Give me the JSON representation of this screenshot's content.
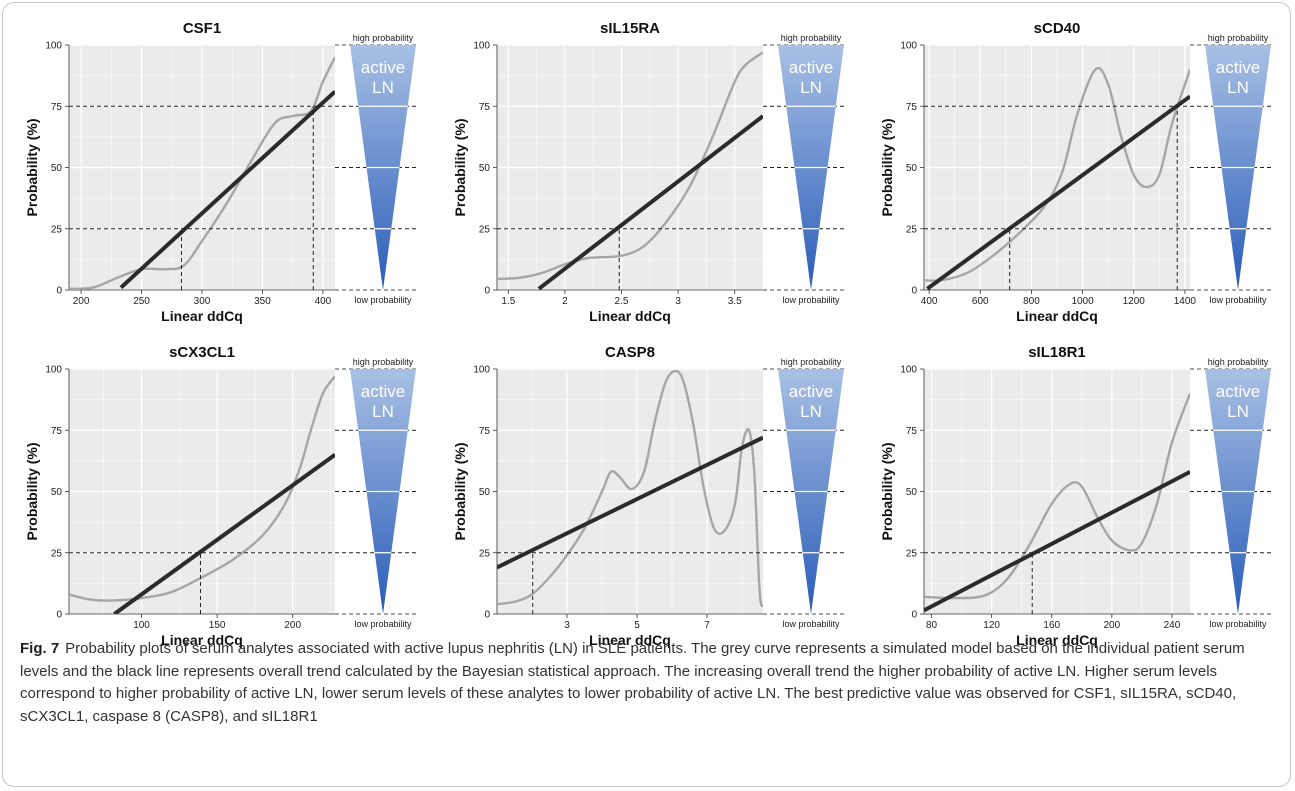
{
  "figure": {
    "fig_label": "Fig. 7",
    "caption": "Probability plots of serum analytes associated with active lupus nephritis (LN) in SLE patients. The grey curve represents a simulated model based on the individual patient serum levels and the black line represents overall trend calculated by the Bayesian statistical approach. The increasing overall trend the higher probability of active LN. Higher serum levels correspond to higher probability of active LN, lower serum levels of these analytes to lower probability of active LN. The best predictive value was observed for CSF1, sIL15RA, sCD40, sCX3CL1, caspase 8 (CASP8), and sIL18R1"
  },
  "colors": {
    "panel_bg": "#ebebeb",
    "gridline": "#ffffff",
    "curve": "#a6a6a6",
    "trend": "#2b2b2b",
    "dashed": "#222222",
    "wedge_top": "#a8c0e4",
    "wedge_bottom": "#2a5cb8"
  },
  "scale_labels": {
    "high": "high probability",
    "low": "low probability",
    "region": [
      "active",
      "LN"
    ]
  },
  "chart_data": [
    {
      "type": "line",
      "title": "CSF1",
      "xlabel": "Linear ddCq",
      "ylabel": "Probability (%)",
      "xlim": [
        190,
        410
      ],
      "ylim": [
        0,
        100
      ],
      "xticks": [
        200,
        250,
        300,
        350,
        400
      ],
      "yticks": [
        0,
        25,
        50,
        75,
        100
      ],
      "series": [
        {
          "role": "simulated model",
          "x": [
            190,
            210,
            230,
            250,
            270,
            285,
            300,
            320,
            340,
            360,
            375,
            390,
            400,
            410
          ],
          "y": [
            0.5,
            1,
            5,
            8.5,
            8.5,
            10,
            20,
            35,
            52,
            68,
            71,
            73,
            85,
            95
          ]
        },
        {
          "role": "overall trend",
          "x": [
            233,
            410
          ],
          "y": [
            1,
            81
          ]
        }
      ],
      "dashed_markers": [
        {
          "x": 283,
          "y": 25
        },
        {
          "x": 392,
          "y": 75
        }
      ],
      "grid": true
    },
    {
      "type": "line",
      "title": "sIL15RA",
      "xlabel": "Linear ddCq",
      "ylabel": "Probability (%)",
      "xlim": [
        1.4,
        3.75
      ],
      "ylim": [
        0,
        100
      ],
      "xticks": [
        1.5,
        2.0,
        2.5,
        3.0,
        3.5
      ],
      "yticks": [
        0,
        25,
        50,
        75,
        100
      ],
      "series": [
        {
          "role": "simulated model",
          "x": [
            1.4,
            1.6,
            1.8,
            2.0,
            2.2,
            2.5,
            2.7,
            2.9,
            3.1,
            3.3,
            3.5,
            3.6,
            3.75
          ],
          "y": [
            4.5,
            5,
            7,
            10.5,
            13,
            14,
            18,
            28,
            42,
            62,
            85,
            92,
            97
          ]
        },
        {
          "role": "overall trend",
          "x": [
            1.77,
            3.75
          ],
          "y": [
            0.5,
            71
          ]
        }
      ],
      "dashed_markers": [
        {
          "x": 2.48,
          "y": 25
        }
      ],
      "grid": true
    },
    {
      "type": "line",
      "title": "sCD40",
      "xlabel": "Linear ddCq",
      "ylabel": "Probability (%)",
      "xlim": [
        380,
        1420
      ],
      "ylim": [
        0,
        100
      ],
      "xticks": [
        400,
        600,
        800,
        1000,
        1200,
        1400
      ],
      "yticks": [
        0,
        25,
        50,
        75,
        100
      ],
      "series": [
        {
          "role": "simulated model",
          "x": [
            380,
            450,
            550,
            650,
            750,
            850,
            920,
            980,
            1050,
            1100,
            1150,
            1200,
            1250,
            1300,
            1350,
            1420
          ],
          "y": [
            4,
            4,
            7,
            14,
            23,
            34,
            48,
            72,
            90,
            84,
            63,
            47,
            42,
            47,
            68,
            90
          ]
        },
        {
          "role": "overall trend",
          "x": [
            393,
            1420
          ],
          "y": [
            0.5,
            79
          ]
        }
      ],
      "dashed_markers": [
        {
          "x": 715,
          "y": 25
        },
        {
          "x": 1370,
          "y": 75
        }
      ],
      "grid": true
    },
    {
      "type": "line",
      "title": "sCX3CL1",
      "xlabel": "Linear ddCq",
      "ylabel": "Probability (%)",
      "xlim": [
        52,
        228
      ],
      "ylim": [
        0,
        100
      ],
      "xticks": [
        100,
        150,
        200
      ],
      "yticks": [
        0,
        25,
        50,
        75,
        100
      ],
      "series": [
        {
          "role": "simulated model",
          "x": [
            52,
            65,
            80,
            100,
            120,
            140,
            160,
            180,
            195,
            205,
            212,
            220,
            228
          ],
          "y": [
            8,
            6,
            5.5,
            6.5,
            9,
            15,
            22,
            32,
            45,
            60,
            75,
            90,
            97
          ]
        },
        {
          "role": "overall trend",
          "x": [
            82,
            228
          ],
          "y": [
            0,
            65
          ]
        }
      ],
      "dashed_markers": [
        {
          "x": 139,
          "y": 25
        }
      ],
      "grid": true
    },
    {
      "type": "line",
      "title": "CASP8",
      "xlabel": "Linear ddCq",
      "ylabel": "Probability (%)",
      "xlim": [
        1,
        8.6
      ],
      "ylim": [
        0,
        100
      ],
      "xticks": [
        3,
        5,
        7
      ],
      "yticks": [
        0,
        25,
        50,
        75,
        100
      ],
      "series": [
        {
          "role": "simulated model",
          "x": [
            1,
            1.5,
            2,
            2.5,
            3,
            3.5,
            4,
            4.25,
            4.5,
            4.85,
            5.2,
            5.5,
            5.8,
            6.05,
            6.3,
            6.6,
            6.9,
            7.2,
            7.5,
            7.8,
            8.0,
            8.2,
            8.35,
            8.5,
            8.6
          ],
          "y": [
            4,
            5,
            8,
            15,
            24,
            35,
            50,
            58,
            56,
            51,
            58,
            78,
            94,
            99,
            96,
            78,
            52,
            35,
            34,
            45,
            68,
            75,
            58,
            10,
            3
          ]
        },
        {
          "role": "overall trend",
          "x": [
            1,
            8.6
          ],
          "y": [
            19,
            72
          ]
        }
      ],
      "dashed_markers": [
        {
          "x": 2.02,
          "y": 25
        }
      ],
      "grid": true
    },
    {
      "type": "line",
      "title": "sIL18R1",
      "xlabel": "Linear ddCq",
      "ylabel": "Probability (%)",
      "xlim": [
        75,
        252
      ],
      "ylim": [
        0,
        100
      ],
      "xticks": [
        80,
        120,
        160,
        200,
        240
      ],
      "yticks": [
        0,
        25,
        50,
        75,
        100
      ],
      "series": [
        {
          "role": "simulated model",
          "x": [
            75,
            95,
            115,
            130,
            145,
            160,
            172,
            180,
            190,
            200,
            212,
            220,
            230,
            240,
            252
          ],
          "y": [
            7,
            6.5,
            7.5,
            14,
            28,
            45,
            53,
            52,
            40,
            30,
            26,
            29,
            45,
            70,
            90
          ]
        },
        {
          "role": "overall trend",
          "x": [
            75,
            252
          ],
          "y": [
            1.5,
            58
          ]
        }
      ],
      "dashed_markers": [
        {
          "x": 147,
          "y": 25
        }
      ],
      "grid": true
    }
  ]
}
